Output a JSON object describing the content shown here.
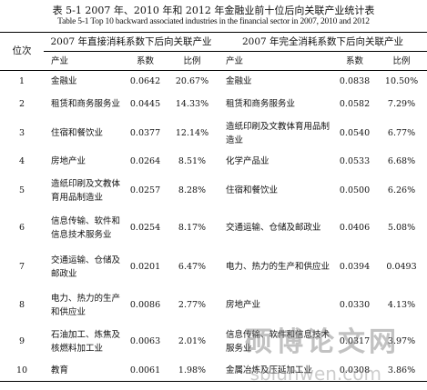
{
  "header": {
    "title": "表 5-1 2007 年、2010 年和 2012 年金融业前十位后向关联产业统计表",
    "subtitle": "Table 5-1 Top 10 backward associated industries in the financial sector in 2007, 2010 and 2012"
  },
  "table": {
    "group_headers": [
      "位次",
      "2007 年直接消耗系数下后向关联产业",
      "2007 年完全消耗系数下后向关联产业"
    ],
    "columns": [
      "产业",
      "系数",
      "比例",
      "产业",
      "系数",
      "比例"
    ],
    "rows": [
      [
        "1",
        "金融业",
        "0.0642",
        "20.67%",
        "金融业",
        "0.0838",
        "10.50%"
      ],
      [
        "2",
        "租赁和商务服务业",
        "0.0445",
        "14.33%",
        "租赁和商务服务业",
        "0.0582",
        "7.29%"
      ],
      [
        "3",
        "住宿和餐饮业",
        "0.0377",
        "12.14%",
        "造纸印刷及文教体育用品制造业",
        "0.0540",
        "6.77%"
      ],
      [
        "4",
        "房地产业",
        "0.0264",
        "8.51%",
        "化学产品业",
        "0.0533",
        "6.68%"
      ],
      [
        "5",
        "造纸印刷及文教体育用品制造业",
        "0.0257",
        "8.28%",
        "住宿和餐饮业",
        "0.0500",
        "6.26%"
      ],
      [
        "6",
        "信息传输、软件和信息技术服务业",
        "0.0254",
        "8.17%",
        "交通运输、仓储及邮政业",
        "0.0406",
        "5.08%"
      ],
      [
        "7",
        "交通运输、仓储及邮政业",
        "0.0201",
        "6.47%",
        "电力、热力的生产和供应业",
        "0.0394",
        "0.0493"
      ],
      [
        "8",
        "电力、热力的生产和供应业",
        "0.0086",
        "2.77%",
        "房地产业",
        "0.0330",
        "4.13%"
      ],
      [
        "9",
        "石油加工、炼焦及核燃料加工业",
        "0.0063",
        "2.01%",
        "信息传输、软件和信息技术服务业",
        "0.0317",
        "3.97%"
      ],
      [
        "10",
        "教育",
        "0.0061",
        "1.98%",
        "金属冶炼及压延加工业",
        "0.0308",
        "3.86%"
      ]
    ]
  },
  "watermark": {
    "text": "硕博论文网",
    "url": "sblunwen.com"
  }
}
